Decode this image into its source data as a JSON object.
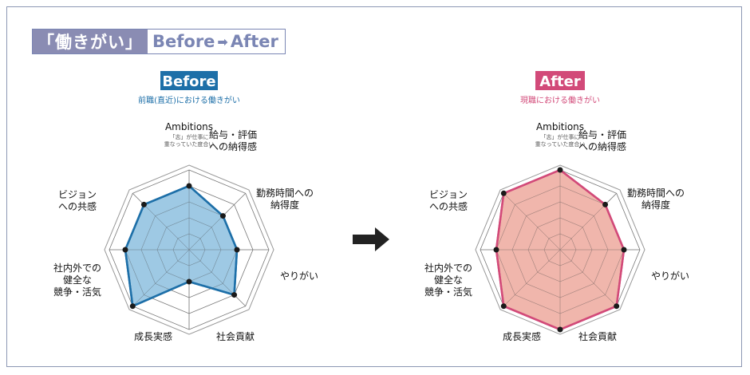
{
  "header": {
    "title_jp": "「働きがい」",
    "title_before": "Before",
    "title_arrow": "➡",
    "title_after": "After"
  },
  "colors": {
    "before_accent": "#1d6fa8",
    "before_fill": "#8dbfdf",
    "after_accent": "#d24a79",
    "after_fill": "#eda99d",
    "frame": "#8c97b3",
    "header_bg": "#8a8cb3"
  },
  "chart_data": [
    {
      "type": "radar",
      "title": "Before",
      "subtitle": "前職(直近)における働きがい",
      "scale_levels": 5,
      "axes": [
        {
          "label": "Ambitions",
          "sub": "「志」が仕事に\n重なっていた度合い"
        },
        {
          "label": "給与・評価\nへの納得感"
        },
        {
          "label": "勤務時間への\n納得度"
        },
        {
          "label": "やりがい"
        },
        {
          "label": "社会貢献"
        },
        {
          "label": "成長実感"
        },
        {
          "label": "社内外での\n健全な\n競争・活気"
        },
        {
          "label": "ビジョン\nへの共感"
        }
      ],
      "values": [
        4,
        3,
        3,
        4,
        2,
        5,
        4,
        4
      ]
    },
    {
      "type": "radar",
      "title": "After",
      "subtitle": "現職における働きがい",
      "scale_levels": 5,
      "axes": [
        {
          "label": "Ambitions",
          "sub": "「志」が仕事に\n重なっていた度合い"
        },
        {
          "label": "給与・評価\nへの納得感"
        },
        {
          "label": "勤務時間への\n納得度"
        },
        {
          "label": "やりがい"
        },
        {
          "label": "社会貢献"
        },
        {
          "label": "成長実感"
        },
        {
          "label": "社内外での\n健全な\n競争・活気"
        },
        {
          "label": "ビジョン\nへの共感"
        }
      ],
      "values": [
        5,
        4,
        4,
        5,
        5,
        5,
        4,
        5
      ]
    }
  ]
}
